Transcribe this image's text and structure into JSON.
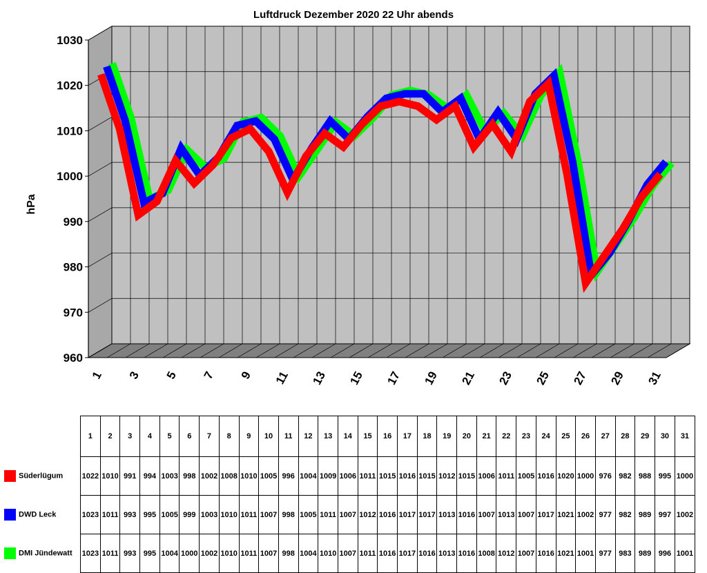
{
  "chart_data": {
    "type": "line",
    "title": "Luftdruck Dezember 2020 22 Uhr abends",
    "ylabel": "hPa",
    "xlabel": "",
    "ylim": [
      960,
      1030
    ],
    "yticks": [
      "960",
      "970",
      "980",
      "990",
      "1000",
      "1010",
      "1020",
      "1030"
    ],
    "categories": [
      "1",
      "2",
      "3",
      "4",
      "5",
      "6",
      "7",
      "8",
      "9",
      "10",
      "11",
      "12",
      "13",
      "14",
      "15",
      "16",
      "17",
      "18",
      "19",
      "20",
      "21",
      "22",
      "23",
      "24",
      "25",
      "26",
      "27",
      "28",
      "29",
      "30",
      "31"
    ],
    "xtick_labels": [
      "1",
      "3",
      "5",
      "7",
      "9",
      "11",
      "13",
      "15",
      "17",
      "19",
      "21",
      "23",
      "25",
      "27",
      "29",
      "31"
    ],
    "grid": true,
    "legend_placement": "table-below",
    "series": [
      {
        "name": "Süderlügum",
        "color": "#ff0000",
        "values": [
          1022,
          1010,
          991,
          994,
          1003,
          998,
          1002,
          1008,
          1010,
          1005,
          996,
          1004,
          1009,
          1006,
          1011,
          1015,
          1016,
          1015,
          1012,
          1015,
          1006,
          1011,
          1005,
          1016,
          1020,
          1000,
          976,
          982,
          988,
          995,
          1000
        ]
      },
      {
        "name": "DWD Leck",
        "color": "#0000ff",
        "values": [
          1023,
          1011,
          993,
          995,
          1005,
          999,
          1003,
          1010,
          1011,
          1007,
          998,
          1005,
          1011,
          1007,
          1012,
          1016,
          1017,
          1017,
          1013,
          1016,
          1007,
          1013,
          1007,
          1017,
          1021,
          1002,
          977,
          982,
          989,
          997,
          1002
        ]
      },
      {
        "name": "DMI Jündewatt",
        "color": "#00ff00",
        "values": [
          1023,
          1011,
          993,
          995,
          1004,
          1000,
          1002,
          1010,
          1011,
          1007,
          998,
          1004,
          1010,
          1007,
          1011,
          1016,
          1017,
          1016,
          1013,
          1016,
          1008,
          1012,
          1007,
          1016,
          1021,
          1001,
          977,
          983,
          989,
          996,
          1001
        ]
      }
    ]
  }
}
